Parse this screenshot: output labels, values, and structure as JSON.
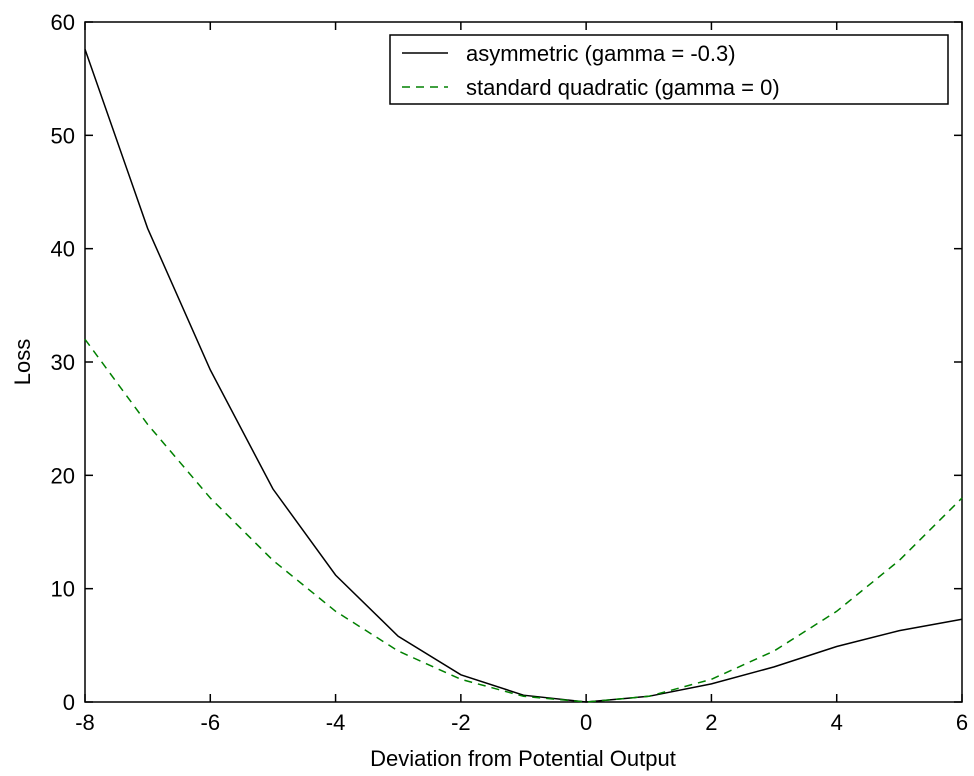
{
  "chart_data": {
    "type": "line",
    "title": "",
    "xlabel": "Deviation from Potential Output",
    "ylabel": "Loss",
    "xlim": [
      -8,
      6
    ],
    "ylim": [
      0,
      60
    ],
    "xticks": [
      -8,
      -6,
      -4,
      -2,
      0,
      2,
      4,
      6
    ],
    "yticks": [
      0,
      10,
      20,
      30,
      40,
      50,
      60
    ],
    "xtick_labels": [
      "-8",
      "-6",
      "-4",
      "-2",
      "0",
      "2",
      "4",
      "6"
    ],
    "ytick_labels": [
      "0",
      "10",
      "20",
      "30",
      "40",
      "50",
      "60"
    ],
    "grid": false,
    "legend_position": "top-right",
    "x": [
      -8,
      -7,
      -6,
      -5,
      -4,
      -3,
      -2,
      -1,
      0,
      1,
      2,
      3,
      4,
      5,
      6
    ],
    "series": [
      {
        "name": "asymmetric (gamma = -0.3)",
        "style": "solid",
        "color": "#000000",
        "values": [
          57.6,
          41.8,
          29.3,
          18.8,
          11.2,
          5.8,
          2.4,
          0.6,
          0,
          0.5,
          1.6,
          3.1,
          4.9,
          6.3,
          7.3
        ]
      },
      {
        "name": "standard quadratic (gamma = 0)",
        "style": "dashed",
        "color": "#008000",
        "values": [
          32,
          24.5,
          18,
          12.5,
          8,
          4.5,
          2,
          0.5,
          0,
          0.5,
          2,
          4.5,
          8,
          12.5,
          18
        ]
      }
    ]
  }
}
